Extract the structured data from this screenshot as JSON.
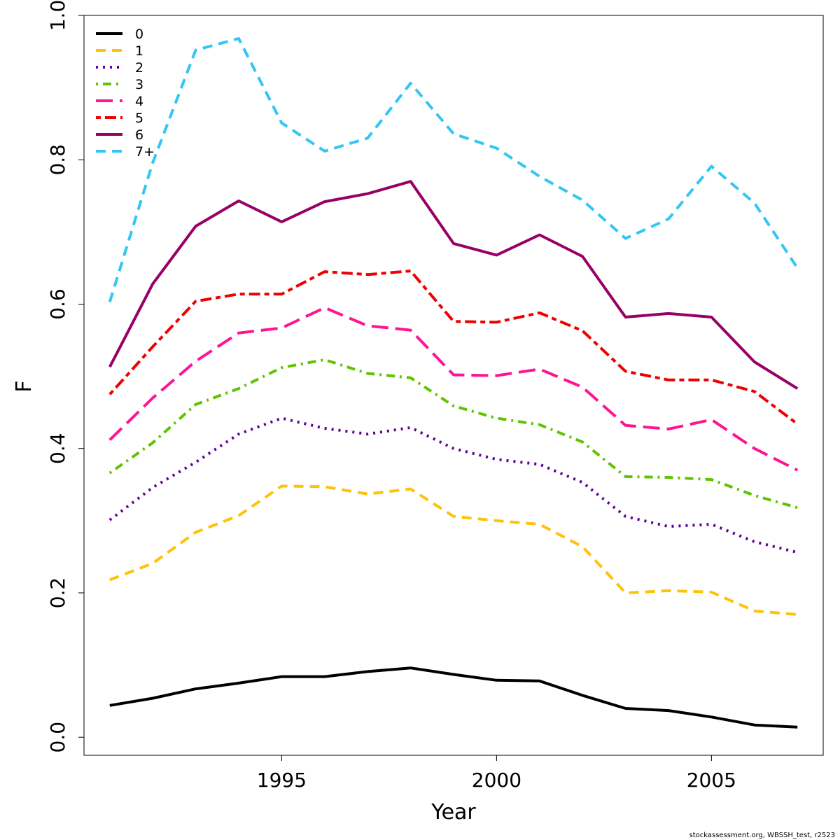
{
  "chart_data": {
    "type": "line",
    "title": "",
    "xlabel": "Year",
    "ylabel": "F",
    "xlim": [
      1990.4,
      2007.6
    ],
    "ylim": [
      -0.025,
      1.0
    ],
    "x_ticks": [
      1995,
      2000,
      2005
    ],
    "y_ticks": [
      0.0,
      0.2,
      0.4,
      0.6,
      0.8,
      1.0
    ],
    "y_tick_labels": [
      "0.0",
      "0.2",
      "0.4",
      "0.6",
      "0.8",
      "1.0"
    ],
    "grid": false,
    "legend_position": "top-left",
    "x": [
      1991,
      1992,
      1993,
      1994,
      1995,
      1996,
      1997,
      1998,
      1999,
      2000,
      2001,
      2002,
      2003,
      2004,
      2005,
      2006,
      2007
    ],
    "series": [
      {
        "name": "0",
        "color": "#000000",
        "dash": "solid",
        "values": [
          0.044,
          0.054,
          0.067,
          0.075,
          0.084,
          0.084,
          0.091,
          0.096,
          0.087,
          0.079,
          0.078,
          0.058,
          0.04,
          0.037,
          0.028,
          0.017,
          0.014
        ]
      },
      {
        "name": "1",
        "color": "#FFC20A",
        "dash": "dashed",
        "values": [
          0.218,
          0.241,
          0.284,
          0.307,
          0.348,
          0.347,
          0.337,
          0.344,
          0.306,
          0.3,
          0.295,
          0.264,
          0.2,
          0.203,
          0.201,
          0.175,
          0.17
        ]
      },
      {
        "name": "2",
        "color": "#5C0096",
        "dash": "dotted",
        "values": [
          0.301,
          0.346,
          0.381,
          0.42,
          0.442,
          0.428,
          0.42,
          0.429,
          0.4,
          0.385,
          0.378,
          0.353,
          0.306,
          0.292,
          0.295,
          0.271,
          0.256
        ]
      },
      {
        "name": "3",
        "color": "#5FC400",
        "dash": "dotdash",
        "values": [
          0.366,
          0.408,
          0.461,
          0.483,
          0.512,
          0.523,
          0.504,
          0.498,
          0.459,
          0.442,
          0.433,
          0.409,
          0.361,
          0.36,
          0.357,
          0.335,
          0.318
        ]
      },
      {
        "name": "4",
        "color": "#FF1493",
        "dash": "longdash",
        "values": [
          0.412,
          0.47,
          0.521,
          0.56,
          0.567,
          0.595,
          0.57,
          0.564,
          0.502,
          0.501,
          0.51,
          0.485,
          0.432,
          0.427,
          0.44,
          0.4,
          0.37
        ]
      },
      {
        "name": "5",
        "color": "#EE0000",
        "dash": "twodash",
        "values": [
          0.475,
          0.541,
          0.604,
          0.614,
          0.614,
          0.645,
          0.641,
          0.646,
          0.576,
          0.575,
          0.588,
          0.563,
          0.507,
          0.495,
          0.495,
          0.479,
          0.434
        ]
      },
      {
        "name": "6",
        "color": "#990066",
        "dash": "solid",
        "values": [
          0.513,
          0.628,
          0.708,
          0.743,
          0.714,
          0.742,
          0.753,
          0.77,
          0.684,
          0.668,
          0.696,
          0.666,
          0.582,
          0.587,
          0.582,
          0.52,
          0.483
        ]
      },
      {
        "name": "7+",
        "color": "#33C6F5",
        "dash": "dashed",
        "values": [
          0.603,
          0.796,
          0.952,
          0.968,
          0.851,
          0.812,
          0.83,
          0.906,
          0.836,
          0.816,
          0.777,
          0.744,
          0.691,
          0.718,
          0.791,
          0.74,
          0.65
        ]
      }
    ]
  },
  "footer": {
    "text": "stockassessment.org, WBSSH_test, r2523"
  }
}
